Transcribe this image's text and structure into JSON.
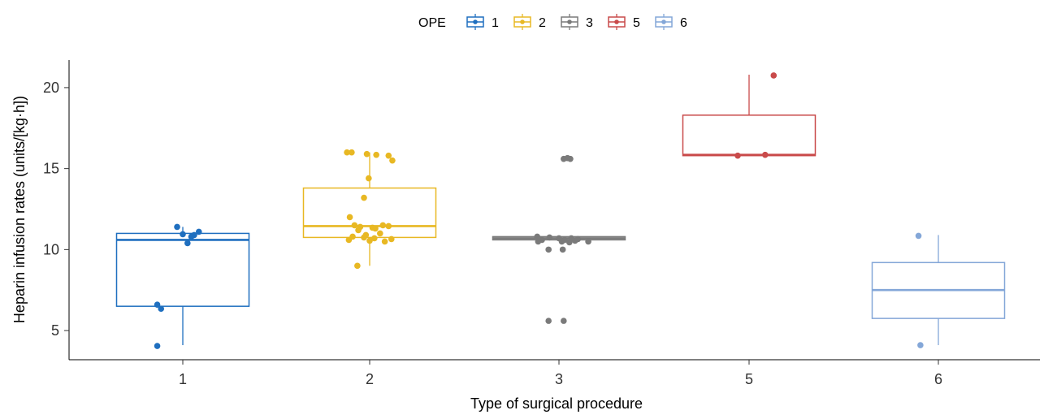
{
  "chart_data": {
    "type": "boxplot",
    "title": "",
    "xlabel": "Type of surgical procedure",
    "ylabel": "Heparin infusion rates (units/[kg·h])",
    "ylim": [
      3.2,
      21.7
    ],
    "yticks": [
      5,
      10,
      15,
      20
    ],
    "categories": [
      "1",
      "2",
      "3",
      "5",
      "6"
    ],
    "legend": {
      "title": "OPE",
      "position": "top",
      "entries": [
        "1",
        "2",
        "3",
        "5",
        "6"
      ]
    },
    "grid": false,
    "colors": {
      "1": "#1f6fbf",
      "2": "#e8b823",
      "3": "#7a7a7a",
      "5": "#c94a4a",
      "6": "#84a7d8"
    },
    "boxes": [
      {
        "category": "1",
        "whisker_low": 4.1,
        "q1": 6.5,
        "median": 10.6,
        "q3": 11.0,
        "whisker_high": 11.4
      },
      {
        "category": "2",
        "whisker_low": 9.0,
        "q1": 10.75,
        "median": 11.45,
        "q3": 13.8,
        "whisker_high": 16.0
      },
      {
        "category": "3",
        "whisker_low": 10.6,
        "q1": 10.6,
        "median": 10.7,
        "q3": 10.8,
        "whisker_high": 10.8
      },
      {
        "category": "5",
        "whisker_low": 15.8,
        "q1": 15.8,
        "median": 15.85,
        "q3": 18.3,
        "whisker_high": 20.8
      },
      {
        "category": "6",
        "whisker_low": 4.1,
        "q1": 5.75,
        "median": 7.5,
        "q3": 9.2,
        "whisker_high": 10.9
      }
    ],
    "points": [
      {
        "category": "1",
        "values": [
          11.4,
          11.1,
          10.95,
          10.9,
          10.8,
          10.4,
          6.6,
          6.35,
          4.05
        ],
        "jitter": [
          -0.06,
          0.17,
          0.0,
          0.12,
          0.09,
          0.05,
          -0.27,
          -0.23,
          -0.27
        ]
      },
      {
        "category": "2",
        "values": [
          16.0,
          16.0,
          15.9,
          15.85,
          15.8,
          15.5,
          14.4,
          13.2,
          12.0,
          11.5,
          11.5,
          11.45,
          11.4,
          11.35,
          11.3,
          11.2,
          11.0,
          10.9,
          10.8,
          10.75,
          10.7,
          10.65,
          10.6,
          10.55,
          10.5,
          9.0
        ],
        "jitter": [
          -0.24,
          -0.19,
          -0.03,
          0.07,
          0.2,
          0.24,
          -0.01,
          -0.06,
          -0.21,
          -0.16,
          0.14,
          0.2,
          -0.1,
          0.03,
          0.06,
          -0.12,
          0.11,
          -0.04,
          -0.18,
          -0.06,
          0.05,
          0.23,
          -0.22,
          0.0,
          0.16,
          -0.13
        ]
      },
      {
        "category": "3",
        "values": [
          15.6,
          15.65,
          15.6,
          10.8,
          10.75,
          10.7,
          10.7,
          10.65,
          10.6,
          10.6,
          10.55,
          10.5,
          10.5,
          10.5,
          10.45,
          10.0,
          10.0,
          5.6,
          5.6
        ],
        "jitter": [
          0.05,
          0.09,
          0.12,
          -0.23,
          -0.1,
          0.0,
          0.13,
          0.2,
          -0.18,
          0.06,
          0.17,
          -0.22,
          0.03,
          0.31,
          0.11,
          -0.11,
          0.04,
          -0.11,
          0.05
        ]
      },
      {
        "category": "5",
        "values": [
          20.75,
          15.85,
          15.8
        ],
        "jitter": [
          0.26,
          0.17,
          -0.12
        ]
      },
      {
        "category": "6",
        "values": [
          10.85,
          4.1
        ],
        "jitter": [
          -0.21,
          -0.19
        ]
      }
    ]
  }
}
